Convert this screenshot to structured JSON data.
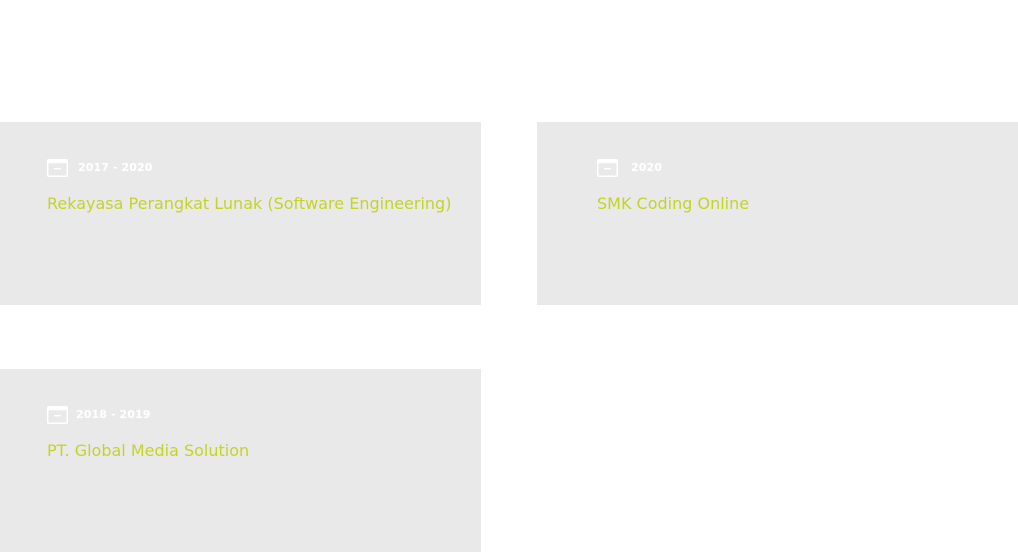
{
  "colors": {
    "card_background": "#e9e9e9",
    "title": "#c5d327",
    "date": "#ffffff"
  },
  "timeline": [
    {
      "icon": "calendar-icon",
      "date": "2017 - 2020",
      "title": "Rekayasa Perangkat Lunak (Software Engineering)"
    },
    {
      "icon": "calendar-icon",
      "date": "2020",
      "title": "SMK Coding Online"
    },
    {
      "icon": "calendar-icon",
      "date": "2018 -  2019",
      "title": "PT. Global Media Solution"
    }
  ]
}
